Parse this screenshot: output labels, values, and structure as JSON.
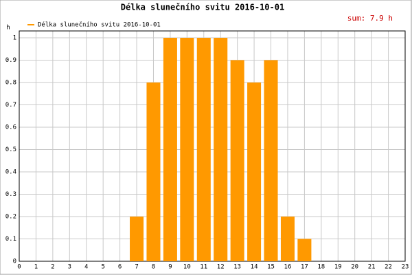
{
  "chart_data": {
    "type": "bar",
    "title": "Délka slunečního svitu 2016-10-01",
    "annotation": "sum: 7.9 h",
    "y_label": "h",
    "x": [
      0,
      1,
      2,
      3,
      4,
      5,
      6,
      7,
      8,
      9,
      10,
      11,
      12,
      13,
      14,
      15,
      16,
      17,
      18,
      19,
      20,
      21,
      22,
      23
    ],
    "series": [
      {
        "name": "Délka slunečního svitu 2016-10-01",
        "color": "#ff9900",
        "values": [
          0,
          0,
          0,
          0,
          0,
          0,
          0,
          0.2,
          0.8,
          1,
          1,
          1,
          1,
          0.9,
          0.8,
          0.9,
          0.2,
          0.1,
          0,
          0,
          0,
          0,
          0,
          0
        ]
      }
    ],
    "xlim": [
      0,
      23
    ],
    "xticks": [
      0,
      1,
      2,
      3,
      4,
      5,
      6,
      7,
      8,
      9,
      10,
      11,
      12,
      13,
      14,
      15,
      16,
      17,
      18,
      19,
      20,
      21,
      22,
      23
    ],
    "ylim": [
      0,
      1
    ],
    "yticks": [
      0,
      0.1,
      0.2,
      0.3,
      0.4,
      0.5,
      0.6,
      0.7,
      0.8,
      0.9,
      1
    ],
    "grid": true,
    "legend": "top-left"
  }
}
